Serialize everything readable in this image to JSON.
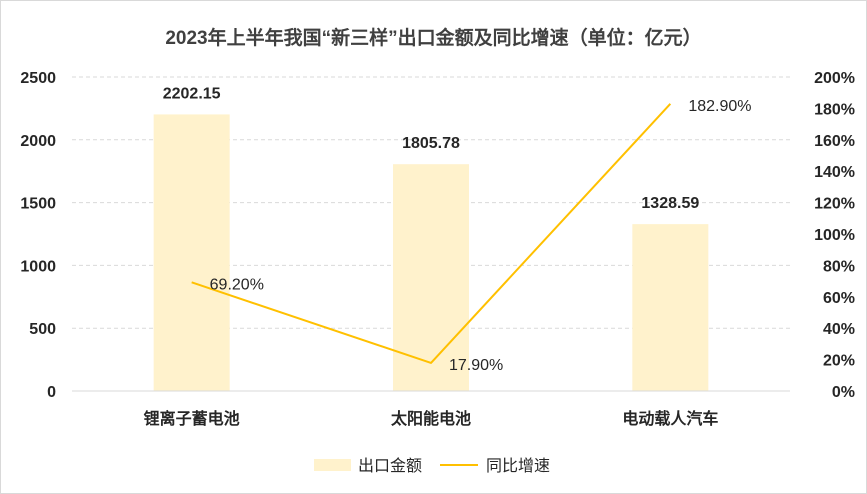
{
  "chart_data": {
    "type": "bar",
    "title": "2023年上半年我国“新三样”出口金额及同比增速（单位：亿元）",
    "categories": [
      "锂离子蓄电池",
      "太阳能电池",
      "电动载人汽车"
    ],
    "series": [
      {
        "name": "出口金额",
        "type": "bar",
        "axis": "left",
        "values": [
          2202.15,
          1805.78,
          1328.59
        ],
        "labels": [
          "2202.15",
          "1805.78",
          "1328.59"
        ],
        "color": "#FFF2CC"
      },
      {
        "name": "同比增速",
        "type": "line",
        "axis": "right",
        "values": [
          69.2,
          17.9,
          182.9
        ],
        "labels": [
          "69.20%",
          "17.90%",
          "182.90%"
        ],
        "color": "#FFC000"
      }
    ],
    "y_left": {
      "ylim": [
        0,
        2500
      ],
      "ticks": [
        0,
        500,
        1000,
        1500,
        2000,
        2500
      ],
      "tick_labels": [
        "0",
        "500",
        "1000",
        "1500",
        "2000",
        "2500"
      ]
    },
    "y_right": {
      "ylim": [
        0,
        200
      ],
      "ticks": [
        0,
        20,
        40,
        60,
        80,
        100,
        120,
        140,
        160,
        180,
        200
      ],
      "tick_labels": [
        "0%",
        "20%",
        "40%",
        "60%",
        "80%",
        "100%",
        "120%",
        "140%",
        "160%",
        "180%",
        "200%"
      ]
    },
    "grid": true,
    "legend": "bottom"
  }
}
